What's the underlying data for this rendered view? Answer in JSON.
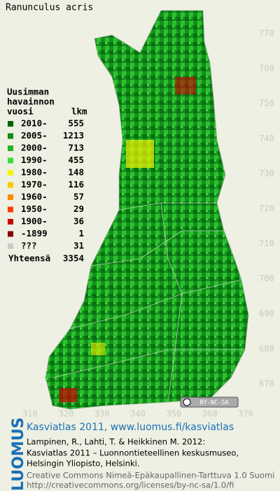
{
  "title": "Ranunculus acris",
  "legend": {
    "heading": [
      "Uusimman",
      "havainnon",
      "vuosi"
    ],
    "count_heading": "lkm",
    "entries": [
      {
        "label": "2010-",
        "count": 555,
        "color": "#006400"
      },
      {
        "label": "2005-",
        "count": 1213,
        "color": "#0f8c1a"
      },
      {
        "label": "2000-",
        "count": 713,
        "color": "#22b522"
      },
      {
        "label": "1990-",
        "count": 455,
        "color": "#3cdc3c"
      },
      {
        "label": "1980-",
        "count": 148,
        "color": "#f4f400"
      },
      {
        "label": "1970-",
        "count": 116,
        "color": "#f8c800"
      },
      {
        "label": "1960-",
        "count": 57,
        "color": "#ff8a00"
      },
      {
        "label": "1950-",
        "count": 29,
        "color": "#ff3a00"
      },
      {
        "label": "1900-",
        "count": 36,
        "color": "#cc0000"
      },
      {
        "label": "-1899",
        "count": 1,
        "color": "#880000"
      },
      {
        "label": "???",
        "count": 31,
        "color": "#cccccc"
      }
    ],
    "total_label": "Yhteensä",
    "total": 3354
  },
  "y_ticks": [
    770,
    760,
    750,
    740,
    730,
    720,
    710,
    700,
    690,
    680,
    670
  ],
  "x_ticks": [
    310,
    320,
    330,
    340,
    350,
    360,
    370
  ],
  "license_badge": "BY-NC-SA",
  "footer": {
    "brand": "LUOMUS",
    "link": "Kasviatlas 2011, www.luomus.fi/kasviatlas",
    "citation": [
      "Lampinen, R., Lahti, T. & Heikkinen M. 2012:",
      "Kasviatlas 2011 – Luonnontieteellinen keskusmuseo,",
      "Helsingin Yliopisto, Helsinki."
    ],
    "license": [
      "Creative Commons Nimeä-Epäkaupallinen-Tarttuva 1.0 Suomi",
      "http://creativecommons.org/licenses/by-nc-sa/1.0/fi"
    ]
  }
}
